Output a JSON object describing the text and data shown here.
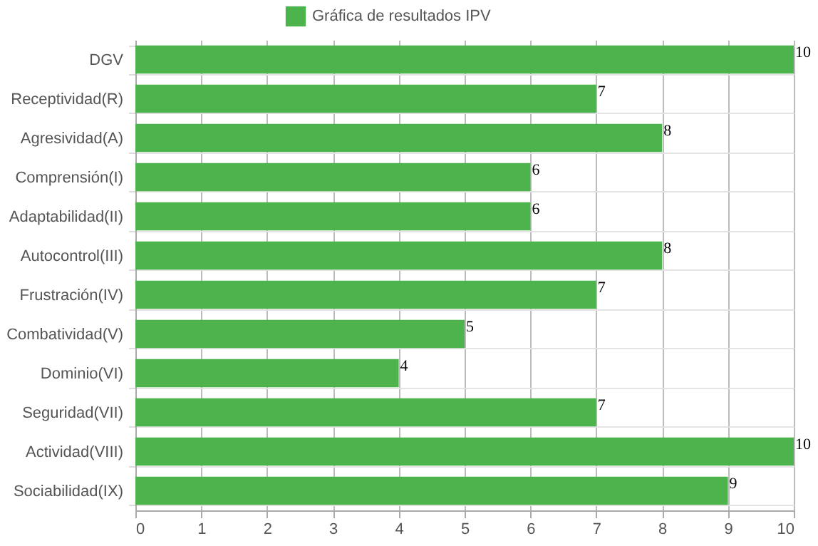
{
  "chart_data": {
    "type": "bar",
    "orientation": "horizontal",
    "categories": [
      "DGV",
      "Receptividad(R)",
      "Agresividad(A)",
      "Comprensión(I)",
      "Adaptabilidad(II)",
      "Autocontrol(III)",
      "Frustración(IV)",
      "Combatividad(V)",
      "Dominio(VI)",
      "Seguridad(VII)",
      "Actividad(VIII)",
      "Sociabilidad(IX)"
    ],
    "series": [
      {
        "name": "Gráfica de resultados IPV",
        "color": "#4db34d",
        "values": [
          10,
          7,
          8,
          6,
          6,
          8,
          7,
          5,
          4,
          7,
          10,
          9
        ]
      }
    ],
    "xlim": [
      0,
      10
    ],
    "xticks": [
      0,
      1,
      2,
      3,
      4,
      5,
      6,
      7,
      8,
      9,
      10
    ],
    "grid": true,
    "legend": "top",
    "data_labels": true
  }
}
